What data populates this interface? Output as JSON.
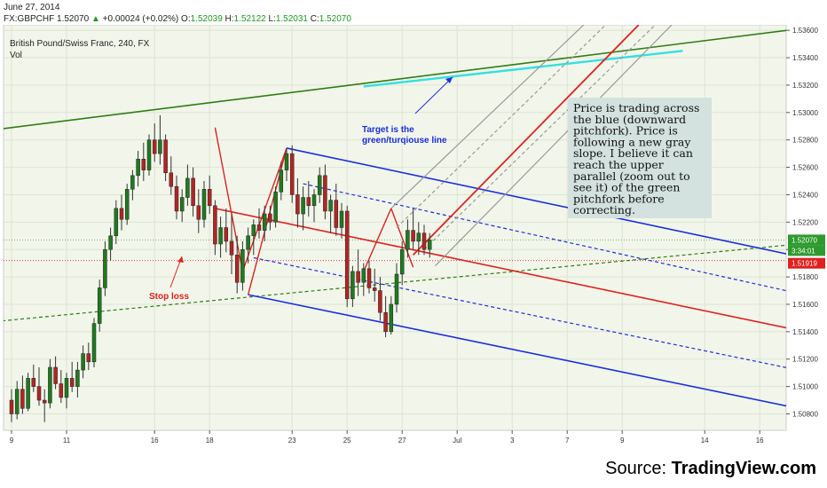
{
  "header": {
    "date": "June 27, 2014",
    "symbol": "FX:GBPCHF",
    "last": "1.52070",
    "change": "+0.00024 (+0.02%)",
    "o_label": "O:",
    "o": "1.52039",
    "h_label": "H:",
    "h": "1.52122",
    "l_label": "L:",
    "l": "1.52031",
    "c_label": "C:",
    "c": "1.52070"
  },
  "chart_data": {
    "type": "candlestick",
    "title": "British Pound/Swiss Franc, 240, FX",
    "subtitle": "Vol",
    "y_axis": {
      "range": [
        1.5068,
        1.5364
      ],
      "ticks": [
        "1.53600",
        "1.53400",
        "1.53200",
        "1.53000",
        "1.52800",
        "1.52600",
        "1.52400",
        "1.52200",
        "1.52000",
        "1.51800",
        "1.51600",
        "1.51400",
        "1.51200",
        "1.51000",
        "1.50800"
      ],
      "current_price_label": "1.52070",
      "countdown_label": "3:34:01",
      "stop_loss_price_label": "1.51919"
    },
    "x_axis": {
      "ticks": [
        {
          "label": "9",
          "i": 0
        },
        {
          "label": "11",
          "i": 10
        },
        {
          "label": "16",
          "i": 26
        },
        {
          "label": "18",
          "i": 36
        },
        {
          "label": "23",
          "i": 51
        },
        {
          "label": "25",
          "i": 61
        },
        {
          "label": "27",
          "i": 71
        },
        {
          "label": "Jul",
          "i": 81
        },
        {
          "label": "3",
          "i": 91
        },
        {
          "label": "7",
          "i": 101
        },
        {
          "label": "9",
          "i": 111
        },
        {
          "label": "14",
          "i": 126
        },
        {
          "label": "16",
          "i": 136
        }
      ]
    },
    "candles": [
      {
        "o": 1.509,
        "h": 1.5098,
        "l": 1.5074,
        "c": 1.508
      },
      {
        "o": 1.508,
        "h": 1.5104,
        "l": 1.5076,
        "c": 1.5098
      },
      {
        "o": 1.5098,
        "h": 1.5108,
        "l": 1.508,
        "c": 1.5084
      },
      {
        "o": 1.5084,
        "h": 1.511,
        "l": 1.5082,
        "c": 1.5106
      },
      {
        "o": 1.5106,
        "h": 1.5116,
        "l": 1.5096,
        "c": 1.51
      },
      {
        "o": 1.51,
        "h": 1.5114,
        "l": 1.5086,
        "c": 1.509
      },
      {
        "o": 1.509,
        "h": 1.5098,
        "l": 1.5074,
        "c": 1.5088
      },
      {
        "o": 1.5088,
        "h": 1.512,
        "l": 1.5084,
        "c": 1.5114
      },
      {
        "o": 1.5114,
        "h": 1.5122,
        "l": 1.5098,
        "c": 1.5102
      },
      {
        "o": 1.5102,
        "h": 1.5112,
        "l": 1.5088,
        "c": 1.5092
      },
      {
        "o": 1.5092,
        "h": 1.511,
        "l": 1.5084,
        "c": 1.5106
      },
      {
        "o": 1.5106,
        "h": 1.5118,
        "l": 1.5096,
        "c": 1.51
      },
      {
        "o": 1.51,
        "h": 1.5118,
        "l": 1.5092,
        "c": 1.5112
      },
      {
        "o": 1.5112,
        "h": 1.513,
        "l": 1.5106,
        "c": 1.5124
      },
      {
        "o": 1.5124,
        "h": 1.5132,
        "l": 1.5112,
        "c": 1.5118
      },
      {
        "o": 1.5118,
        "h": 1.515,
        "l": 1.5114,
        "c": 1.5146
      },
      {
        "o": 1.5146,
        "h": 1.5178,
        "l": 1.514,
        "c": 1.5172
      },
      {
        "o": 1.5172,
        "h": 1.5206,
        "l": 1.5166,
        "c": 1.52
      },
      {
        "o": 1.52,
        "h": 1.5216,
        "l": 1.5192,
        "c": 1.521
      },
      {
        "o": 1.521,
        "h": 1.5236,
        "l": 1.5204,
        "c": 1.523
      },
      {
        "o": 1.523,
        "h": 1.524,
        "l": 1.5214,
        "c": 1.5222
      },
      {
        "o": 1.5222,
        "h": 1.5248,
        "l": 1.5218,
        "c": 1.5244
      },
      {
        "o": 1.5244,
        "h": 1.5258,
        "l": 1.5236,
        "c": 1.5254
      },
      {
        "o": 1.5254,
        "h": 1.5272,
        "l": 1.5246,
        "c": 1.5266
      },
      {
        "o": 1.5266,
        "h": 1.5278,
        "l": 1.525,
        "c": 1.5258
      },
      {
        "o": 1.5258,
        "h": 1.5284,
        "l": 1.5254,
        "c": 1.528
      },
      {
        "o": 1.528,
        "h": 1.5292,
        "l": 1.5264,
        "c": 1.527
      },
      {
        "o": 1.527,
        "h": 1.5298,
        "l": 1.5262,
        "c": 1.528
      },
      {
        "o": 1.528,
        "h": 1.5284,
        "l": 1.525,
        "c": 1.5256
      },
      {
        "o": 1.5256,
        "h": 1.5268,
        "l": 1.524,
        "c": 1.5246
      },
      {
        "o": 1.5246,
        "h": 1.5254,
        "l": 1.5222,
        "c": 1.5228
      },
      {
        "o": 1.5228,
        "h": 1.5244,
        "l": 1.522,
        "c": 1.5238
      },
      {
        "o": 1.5238,
        "h": 1.5262,
        "l": 1.5232,
        "c": 1.5252
      },
      {
        "o": 1.5252,
        "h": 1.526,
        "l": 1.5224,
        "c": 1.5232
      },
      {
        "o": 1.5232,
        "h": 1.5244,
        "l": 1.5212,
        "c": 1.5222
      },
      {
        "o": 1.5222,
        "h": 1.525,
        "l": 1.5216,
        "c": 1.5244
      },
      {
        "o": 1.5244,
        "h": 1.5254,
        "l": 1.5226,
        "c": 1.5232
      },
      {
        "o": 1.5232,
        "h": 1.5236,
        "l": 1.5196,
        "c": 1.5204
      },
      {
        "o": 1.5204,
        "h": 1.5224,
        "l": 1.5194,
        "c": 1.5216
      },
      {
        "o": 1.5216,
        "h": 1.523,
        "l": 1.5198,
        "c": 1.5206
      },
      {
        "o": 1.5206,
        "h": 1.5226,
        "l": 1.5182,
        "c": 1.5196
      },
      {
        "o": 1.5196,
        "h": 1.521,
        "l": 1.5168,
        "c": 1.5176
      },
      {
        "o": 1.5176,
        "h": 1.5206,
        "l": 1.517,
        "c": 1.52
      },
      {
        "o": 1.52,
        "h": 1.5216,
        "l": 1.519,
        "c": 1.521
      },
      {
        "o": 1.521,
        "h": 1.5222,
        "l": 1.5196,
        "c": 1.5218
      },
      {
        "o": 1.5218,
        "h": 1.523,
        "l": 1.5208,
        "c": 1.5214
      },
      {
        "o": 1.5214,
        "h": 1.5232,
        "l": 1.5206,
        "c": 1.5226
      },
      {
        "o": 1.5226,
        "h": 1.5232,
        "l": 1.5214,
        "c": 1.522
      },
      {
        "o": 1.522,
        "h": 1.5246,
        "l": 1.5216,
        "c": 1.5242
      },
      {
        "o": 1.5242,
        "h": 1.5264,
        "l": 1.5236,
        "c": 1.5258
      },
      {
        "o": 1.5258,
        "h": 1.5274,
        "l": 1.525,
        "c": 1.527
      },
      {
        "o": 1.527,
        "h": 1.5276,
        "l": 1.5234,
        "c": 1.524
      },
      {
        "o": 1.524,
        "h": 1.5252,
        "l": 1.5216,
        "c": 1.5226
      },
      {
        "o": 1.5226,
        "h": 1.5246,
        "l": 1.5214,
        "c": 1.5238
      },
      {
        "o": 1.5238,
        "h": 1.525,
        "l": 1.5224,
        "c": 1.5232
      },
      {
        "o": 1.5232,
        "h": 1.5244,
        "l": 1.522,
        "c": 1.524
      },
      {
        "o": 1.524,
        "h": 1.526,
        "l": 1.5234,
        "c": 1.5254
      },
      {
        "o": 1.5254,
        "h": 1.5262,
        "l": 1.5222,
        "c": 1.5228
      },
      {
        "o": 1.5228,
        "h": 1.524,
        "l": 1.5212,
        "c": 1.5236
      },
      {
        "o": 1.5236,
        "h": 1.5248,
        "l": 1.521,
        "c": 1.5216
      },
      {
        "o": 1.5216,
        "h": 1.5234,
        "l": 1.5208,
        "c": 1.5228
      },
      {
        "o": 1.5228,
        "h": 1.5232,
        "l": 1.5158,
        "c": 1.5164
      },
      {
        "o": 1.5164,
        "h": 1.5188,
        "l": 1.5158,
        "c": 1.5184
      },
      {
        "o": 1.5184,
        "h": 1.52,
        "l": 1.5166,
        "c": 1.5176
      },
      {
        "o": 1.5176,
        "h": 1.519,
        "l": 1.5166,
        "c": 1.5186
      },
      {
        "o": 1.5186,
        "h": 1.5192,
        "l": 1.5168,
        "c": 1.5172
      },
      {
        "o": 1.5172,
        "h": 1.5186,
        "l": 1.5162,
        "c": 1.517
      },
      {
        "o": 1.517,
        "h": 1.518,
        "l": 1.5148,
        "c": 1.5154
      },
      {
        "o": 1.5154,
        "h": 1.5166,
        "l": 1.5136,
        "c": 1.514
      },
      {
        "o": 1.514,
        "h": 1.5166,
        "l": 1.5138,
        "c": 1.516
      },
      {
        "o": 1.516,
        "h": 1.519,
        "l": 1.5154,
        "c": 1.5182
      },
      {
        "o": 1.5182,
        "h": 1.5206,
        "l": 1.5174,
        "c": 1.52
      },
      {
        "o": 1.52,
        "h": 1.5222,
        "l": 1.5194,
        "c": 1.5214
      },
      {
        "o": 1.5214,
        "h": 1.523,
        "l": 1.52,
        "c": 1.5206
      },
      {
        "o": 1.5206,
        "h": 1.522,
        "l": 1.5196,
        "c": 1.5212
      },
      {
        "o": 1.5212,
        "h": 1.5218,
        "l": 1.5196,
        "c": 1.52
      },
      {
        "o": 1.52,
        "h": 1.5212,
        "l": 1.5194,
        "c": 1.5207
      }
    ],
    "lines": [
      {
        "name": "green-pitchfork-upper",
        "color": "#2e7d14",
        "width": 1.6,
        "dash": "",
        "p1": [
          -4,
          1.5287
        ],
        "p2": [
          143,
          1.5361
        ]
      },
      {
        "name": "green-cyan-segment",
        "color": "#33e0e0",
        "width": 2.4,
        "dash": "",
        "p1": [
          64,
          1.5319
        ],
        "p2": [
          122,
          1.5345
        ]
      },
      {
        "name": "green-median",
        "color": "#2e7d14",
        "width": 1.2,
        "dash": "4,3",
        "p1": [
          -4,
          1.5147
        ],
        "p2": [
          143,
          1.5204
        ]
      },
      {
        "name": "blue-upper",
        "color": "#1a2ee0",
        "width": 1.6,
        "dash": "",
        "p1": [
          50,
          1.5274
        ],
        "p2": [
          143,
          1.5195
        ]
      },
      {
        "name": "blue-upper-inner",
        "color": "#1a2ee0",
        "width": 1.2,
        "dash": "4,3",
        "p1": [
          53,
          1.5248
        ],
        "p2": [
          143,
          1.5168
        ]
      },
      {
        "name": "blue-lower-inner",
        "color": "#1a2ee0",
        "width": 1.2,
        "dash": "4,3",
        "p1": [
          44,
          1.5194
        ],
        "p2": [
          143,
          1.5112
        ]
      },
      {
        "name": "blue-lower",
        "color": "#1a2ee0",
        "width": 1.6,
        "dash": "",
        "p1": [
          43,
          1.5167
        ],
        "p2": [
          143,
          1.5084
        ]
      },
      {
        "name": "red-median",
        "color": "#e02020",
        "width": 1.6,
        "dash": "",
        "p1": [
          37,
          1.523
        ],
        "p2": [
          143,
          1.5141
        ]
      },
      {
        "name": "red-handle-1",
        "color": "#e02020",
        "width": 1.4,
        "dash": "",
        "p1": [
          37,
          1.5289
        ],
        "p2": [
          42,
          1.5184
        ]
      },
      {
        "name": "red-handle-2",
        "color": "#e02020",
        "width": 1.4,
        "dash": "",
        "p1": [
          42,
          1.5184
        ],
        "p2": [
          50,
          1.5274
        ]
      },
      {
        "name": "red-handle-3",
        "color": "#e02020",
        "width": 1.4,
        "dash": "",
        "p1": [
          43,
          1.5167
        ],
        "p2": [
          50,
          1.5274
        ]
      },
      {
        "name": "red-handle-4",
        "color": "#e02020",
        "width": 1.4,
        "dash": "",
        "p1": [
          64,
          1.5184
        ],
        "p2": [
          69,
          1.523
        ]
      },
      {
        "name": "red-handle-5",
        "color": "#e02020",
        "width": 1.4,
        "dash": "",
        "p1": [
          69,
          1.523
        ],
        "p2": [
          73,
          1.5187
        ]
      },
      {
        "name": "red-up-slope",
        "color": "#e02020",
        "width": 1.8,
        "dash": "",
        "p1": [
          73,
          1.5196
        ],
        "p2": [
          114,
          1.5364
        ]
      },
      {
        "name": "gray-1",
        "color": "#999999",
        "width": 1.2,
        "dash": "",
        "p1": [
          69,
          1.523
        ],
        "p2": [
          104,
          1.5364
        ]
      },
      {
        "name": "gray-2",
        "color": "#999999",
        "width": 1.2,
        "dash": "4,3",
        "p1": [
          70,
          1.5216
        ],
        "p2": [
          108,
          1.5364
        ]
      },
      {
        "name": "gray-3",
        "color": "#999999",
        "width": 1.2,
        "dash": "4,3",
        "p1": [
          75,
          1.52
        ],
        "p2": [
          117,
          1.5364
        ]
      },
      {
        "name": "gray-4",
        "color": "#999999",
        "width": 1.2,
        "dash": "",
        "p1": [
          77,
          1.5188
        ],
        "p2": [
          120,
          1.5364
        ]
      }
    ],
    "annotations": [
      {
        "text": "Target is the",
        "color": "#1a2ee0"
      },
      {
        "text": "green/turqiouse line",
        "color": "#1a2ee0"
      },
      {
        "text": "Stop loss",
        "color": "#e02020"
      }
    ],
    "note_lines": [
      "Price is trading across",
      "the blue (downward",
      "pitchfork). Price is",
      "following a new gray",
      "slope. I believe it can",
      "reach the upper",
      "parallel (zoom out to",
      "see it) of the green",
      "pitchfork before",
      "correcting."
    ]
  },
  "source": {
    "prefix": "Source: ",
    "brand": "TradingView.com"
  }
}
